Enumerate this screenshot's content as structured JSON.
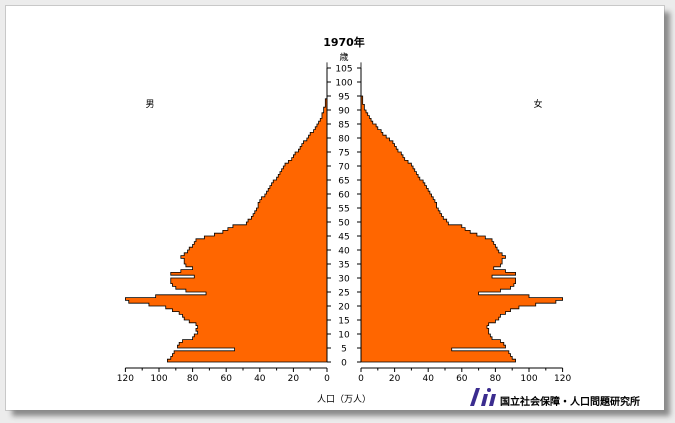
{
  "chart_data": {
    "type": "bar",
    "subtype": "population-pyramid",
    "title": "1970年",
    "age_axis_label": "歳",
    "age_ticks": [
      "0",
      "5",
      "10",
      "15",
      "20",
      "25",
      "30",
      "35",
      "40",
      "45",
      "50",
      "55",
      "60",
      "65",
      "70",
      "75",
      "80",
      "85",
      "90",
      "95",
      "100",
      "105"
    ],
    "left_label": "男",
    "right_label": "女",
    "xlabel": "人口（万人）",
    "x_ticks_left": [
      "120",
      "100",
      "80",
      "60",
      "40",
      "20",
      "0"
    ],
    "x_ticks_right": [
      "0",
      "20",
      "40",
      "60",
      "80",
      "100",
      "120"
    ],
    "xlim": [
      0,
      120
    ],
    "bar_color": "#ff6600",
    "credit": "国立社会保障・人口問題研究所",
    "series": [
      {
        "name": "男",
        "unit": "万人",
        "age_start": 0,
        "values": [
          95,
          93,
          92,
          91,
          55,
          89,
          88,
          86,
          80,
          79,
          77,
          78,
          77,
          78,
          82,
          85,
          86,
          88,
          92,
          96,
          106,
          118,
          120,
          102,
          72,
          84,
          90,
          92,
          93,
          93,
          79,
          93,
          87,
          80,
          84,
          85,
          85,
          87,
          85,
          83,
          82,
          80,
          79,
          78,
          73,
          67,
          62,
          59,
          56,
          48,
          47,
          45,
          44,
          43,
          42,
          41,
          41,
          40,
          39,
          37,
          36,
          35,
          34,
          33,
          32,
          30,
          29,
          28,
          27,
          26,
          25,
          23,
          21,
          20,
          19,
          17,
          16,
          15,
          14,
          12,
          11,
          10,
          8,
          7,
          6,
          5,
          4,
          3,
          3,
          2,
          2,
          1,
          1,
          1,
          0,
          0,
          0,
          0,
          0,
          0,
          0,
          0,
          0,
          0,
          0,
          0,
          0
        ]
      },
      {
        "name": "女",
        "unit": "万人",
        "age_start": 0,
        "values": [
          92,
          90,
          89,
          88,
          54,
          86,
          85,
          83,
          78,
          77,
          76,
          76,
          75,
          76,
          80,
          82,
          83,
          86,
          89,
          94,
          104,
          116,
          120,
          100,
          70,
          83,
          89,
          91,
          92,
          92,
          78,
          92,
          86,
          79,
          83,
          84,
          84,
          86,
          84,
          82,
          81,
          80,
          79,
          78,
          74,
          69,
          65,
          62,
          60,
          52,
          51,
          49,
          48,
          47,
          46,
          45,
          45,
          44,
          43,
          42,
          41,
          40,
          39,
          38,
          37,
          35,
          34,
          33,
          32,
          31,
          30,
          28,
          26,
          25,
          24,
          22,
          21,
          20,
          19,
          17,
          15,
          13,
          12,
          10,
          9,
          7,
          6,
          5,
          4,
          3,
          2,
          2,
          1,
          1,
          1,
          0,
          0,
          0,
          0,
          0,
          0,
          0,
          0,
          0,
          0,
          0,
          0
        ]
      }
    ]
  }
}
